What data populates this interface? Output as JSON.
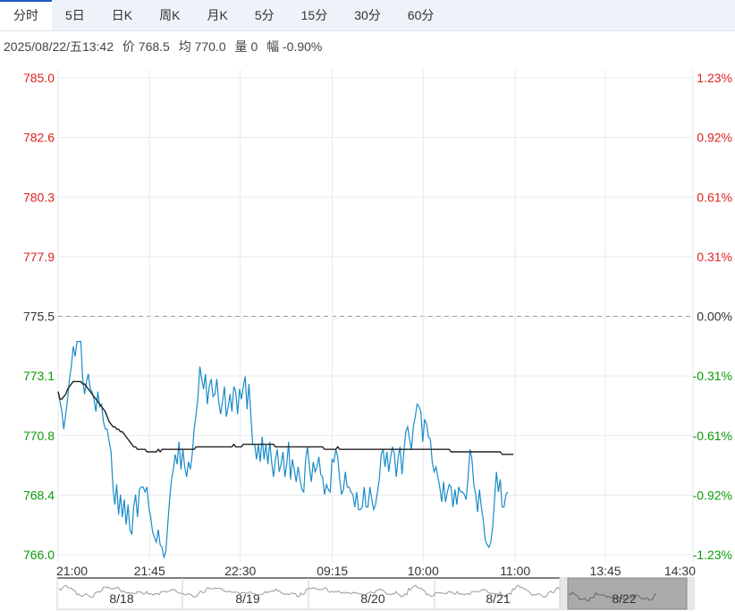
{
  "tabs": [
    {
      "label": "分时",
      "active": true
    },
    {
      "label": "5日"
    },
    {
      "label": "日K"
    },
    {
      "label": "周K"
    },
    {
      "label": "月K"
    },
    {
      "label": "5分"
    },
    {
      "label": "15分"
    },
    {
      "label": "30分"
    },
    {
      "label": "60分"
    }
  ],
  "info": {
    "date": "2025/08/22/五13:42",
    "price_label": "价",
    "price": "768.5",
    "avg_label": "均",
    "avg": "770.0",
    "vol_label": "量",
    "vol": "0",
    "chg_label": "幅",
    "chg": "-0.90%"
  },
  "colors": {
    "up": "#e02020",
    "down": "#0a9a0a",
    "price": "#1a8bc8",
    "avg": "#222222",
    "grid": "#e6e9ee"
  },
  "chart_data": {
    "type": "line",
    "ylim": [
      766.0,
      785.0
    ],
    "base": 775.5,
    "y_ticks_left": [
      "785.0",
      "782.6",
      "780.3",
      "777.9",
      "775.5",
      "773.1",
      "770.8",
      "768.4",
      "766.0"
    ],
    "y_ticks_right": [
      "1.23%",
      "0.92%",
      "0.61%",
      "0.31%",
      "0.00%",
      "-0.31%",
      "-0.61%",
      "-0.92%",
      "-1.23%"
    ],
    "x_ticks": [
      "21:00",
      "21:45",
      "22:30",
      "09:15",
      "10:00",
      "11:00",
      "13:45",
      "14:30"
    ],
    "x_tick_pos": [
      0,
      0.144,
      0.287,
      0.432,
      0.575,
      0.72,
      0.862,
      1.0
    ],
    "series": [
      {
        "values": [
          772.5,
          772.1,
          771.7,
          771.0,
          771.6,
          772.2,
          773.0,
          773.5,
          774.3,
          773.9,
          774.5,
          774.5,
          774.5,
          773.0,
          772.4,
          772.9,
          773.2,
          772.6,
          772.5,
          772.2,
          771.7,
          772.5,
          771.9,
          772.0,
          771.3,
          771.0,
          771.0,
          770.5,
          770.1,
          768.7,
          768.0,
          768.8,
          767.6,
          768.4,
          767.5,
          768.2,
          767.2,
          768.0,
          767.0,
          766.8,
          767.9,
          768.4,
          767.5,
          768.6,
          768.7,
          768.7,
          768.5,
          768.7,
          767.9,
          767.5,
          766.9,
          766.7,
          766.5,
          767.0,
          766.4,
          766.3,
          765.9,
          766.1,
          767.2,
          768.2,
          769.0,
          769.4,
          770.0,
          769.6,
          770.5,
          769.4,
          770.2,
          769.5,
          769.1,
          769.7,
          769.4,
          770.0,
          771.0,
          771.6,
          772.3,
          773.5,
          773.0,
          772.6,
          773.2,
          772.0,
          772.7,
          773.0,
          772.3,
          772.4,
          773.0,
          772.1,
          771.6,
          772.1,
          772.7,
          771.5,
          771.9,
          772.4,
          771.7,
          772.7,
          772.5,
          771.6,
          772.6,
          772.2,
          772.7,
          773.1,
          771.8,
          772.8,
          771.6,
          770.4,
          770.4,
          769.8,
          770.4,
          769.7,
          770.7,
          769.8,
          770.4,
          769.6,
          770.5,
          769.7,
          769.1,
          769.8,
          770.2,
          769.3,
          769.6,
          770.1,
          769.1,
          769.6,
          770.5,
          769.0,
          769.8,
          769.4,
          768.9,
          769.5,
          769.0,
          768.6,
          768.5,
          769.8,
          770.3,
          769.5,
          768.9,
          769.7,
          769.3,
          769.5,
          769.9,
          769.2,
          769.1,
          768.4,
          768.8,
          768.6,
          768.5,
          769.8,
          769.7,
          770.2,
          769.9,
          769.0,
          768.4,
          768.6,
          769.3,
          768.7,
          768.7,
          768.5,
          768.4,
          767.9,
          768.5,
          767.8,
          767.8,
          767.9,
          768.7,
          767.9,
          767.9,
          768.7,
          768.2,
          767.8,
          768.0,
          768.5,
          769.0,
          770.0,
          770.2,
          769.5,
          770.1,
          769.3,
          769.9,
          770.3,
          770.0,
          769.1,
          769.9,
          770.3,
          769.2,
          770.1,
          770.9,
          771.1,
          770.6,
          770.2,
          771.1,
          771.5,
          772.0,
          771.9,
          771.7,
          770.5,
          771.4,
          771.2,
          770.7,
          770.6,
          769.7,
          769.3,
          769.5,
          769.1,
          768.7,
          768.1,
          768.9,
          768.1,
          768.5,
          768.8,
          768.7,
          767.9,
          768.6,
          768.0,
          768.7,
          768.5,
          768.5,
          768.4,
          768.2,
          769.1,
          770.2,
          769.8,
          768.8,
          768.4,
          767.7,
          768.6,
          767.9,
          767.4,
          766.6,
          766.4,
          766.3,
          766.5,
          767.1,
          768.2,
          769.3,
          768.5,
          769.0,
          767.9,
          767.9,
          768.4,
          768.5
        ]
      },
      {
        "values": [
          772.5,
          772.2,
          772.2,
          772.3,
          772.4,
          772.6,
          772.7,
          772.8,
          772.9,
          772.9,
          772.9,
          772.9,
          772.9,
          772.8,
          772.8,
          772.7,
          772.6,
          772.5,
          772.4,
          772.3,
          772.2,
          772.1,
          772.0,
          771.9,
          771.8,
          771.7,
          771.5,
          771.3,
          771.2,
          771.1,
          771.1,
          771.0,
          771.0,
          770.9,
          770.9,
          770.8,
          770.7,
          770.6,
          770.5,
          770.4,
          770.3,
          770.3,
          770.2,
          770.2,
          770.2,
          770.2,
          770.2,
          770.1,
          770.1,
          770.1,
          770.1,
          770.1,
          770.1,
          770.2,
          770.1,
          770.2,
          770.2,
          770.2,
          770.2,
          770.2,
          770.2,
          770.2,
          770.2,
          770.2,
          770.2,
          770.2,
          770.2,
          770.2,
          770.2,
          770.2,
          770.2,
          770.2,
          770.2,
          770.3,
          770.3,
          770.3,
          770.3,
          770.3,
          770.3,
          770.3,
          770.3,
          770.3,
          770.3,
          770.3,
          770.3,
          770.3,
          770.3,
          770.3,
          770.3,
          770.3,
          770.3,
          770.3,
          770.3,
          770.4,
          770.3,
          770.3,
          770.3,
          770.3,
          770.4,
          770.4,
          770.4,
          770.4,
          770.4,
          770.4,
          770.4,
          770.4,
          770.4,
          770.4,
          770.4,
          770.4,
          770.4,
          770.4,
          770.4,
          770.4,
          770.4,
          770.3,
          770.3,
          770.3,
          770.3,
          770.3,
          770.3,
          770.3,
          770.3,
          770.3,
          770.3,
          770.3,
          770.3,
          770.3,
          770.3,
          770.3,
          770.3,
          770.3,
          770.3,
          770.3,
          770.3,
          770.3,
          770.3,
          770.3,
          770.3,
          770.3,
          770.3,
          770.2,
          770.2,
          770.2,
          770.2,
          770.2,
          770.2,
          770.2,
          770.3,
          770.2,
          770.2,
          770.2,
          770.2,
          770.2,
          770.2,
          770.2,
          770.2,
          770.2,
          770.2,
          770.2,
          770.2,
          770.2,
          770.2,
          770.2,
          770.2,
          770.2,
          770.2,
          770.2,
          770.2,
          770.2,
          770.2,
          770.2,
          770.2,
          770.2,
          770.2,
          770.2,
          770.2,
          770.2,
          770.2,
          770.2,
          770.2,
          770.2,
          770.2,
          770.2,
          770.2,
          770.2,
          770.2,
          770.2,
          770.2,
          770.2,
          770.2,
          770.2,
          770.2,
          770.2,
          770.2,
          770.2,
          770.2,
          770.2,
          770.2,
          770.2,
          770.2,
          770.2,
          770.2,
          770.2,
          770.2,
          770.2,
          770.2,
          770.2,
          770.1,
          770.1,
          770.1,
          770.1,
          770.1,
          770.1,
          770.1,
          770.1,
          770.1,
          770.1,
          770.1,
          770.1,
          770.1,
          770.1,
          770.1,
          770.1,
          770.1,
          770.1,
          770.1,
          770.1,
          770.1,
          770.1,
          770.1,
          770.1,
          770.1,
          770.1,
          770.1,
          770.0,
          770.0,
          770.0,
          770.0,
          770.0,
          770.0,
          770.0
        ]
      }
    ],
    "total_slots": 337,
    "grid": true
  },
  "navigator": {
    "labels": [
      "8/18",
      "8/19",
      "8/20",
      "8/21",
      "8/22"
    ]
  }
}
